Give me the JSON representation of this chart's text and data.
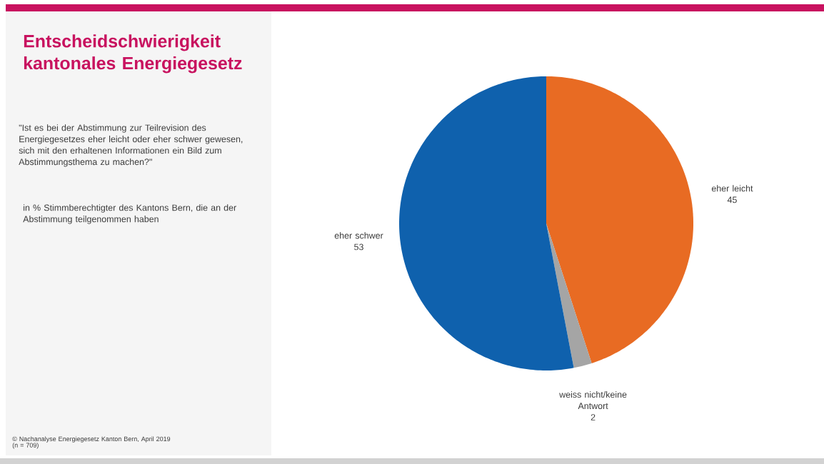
{
  "chart_data": {
    "type": "pie",
    "title": "Entscheidschwierigkeit kantonales Energiegesetz",
    "subtitle": "\"Ist es bei der Abstimmung zur Teilrevision des Energiegesetzes eher leicht oder eher schwer gewesen, sich mit den erhaltenen Informationen ein Bild zum Abstimmungsthema zu machen?\"",
    "annotations": [
      "in % Stimmberechtigter des Kantons Bern, die an der Abstimmung teilgenommen haben",
      "© Nachanalyse Energiegesetz Kanton Bern, April 2019",
      "(n = 709)"
    ],
    "categories": [
      "eher leicht",
      "weiss nicht/keine Antwort",
      "eher schwer"
    ],
    "values": [
      45,
      2,
      53
    ],
    "colors": [
      "#e86b23",
      "#a5a5a5",
      "#0f61ad"
    ],
    "data_labels": true
  }
}
